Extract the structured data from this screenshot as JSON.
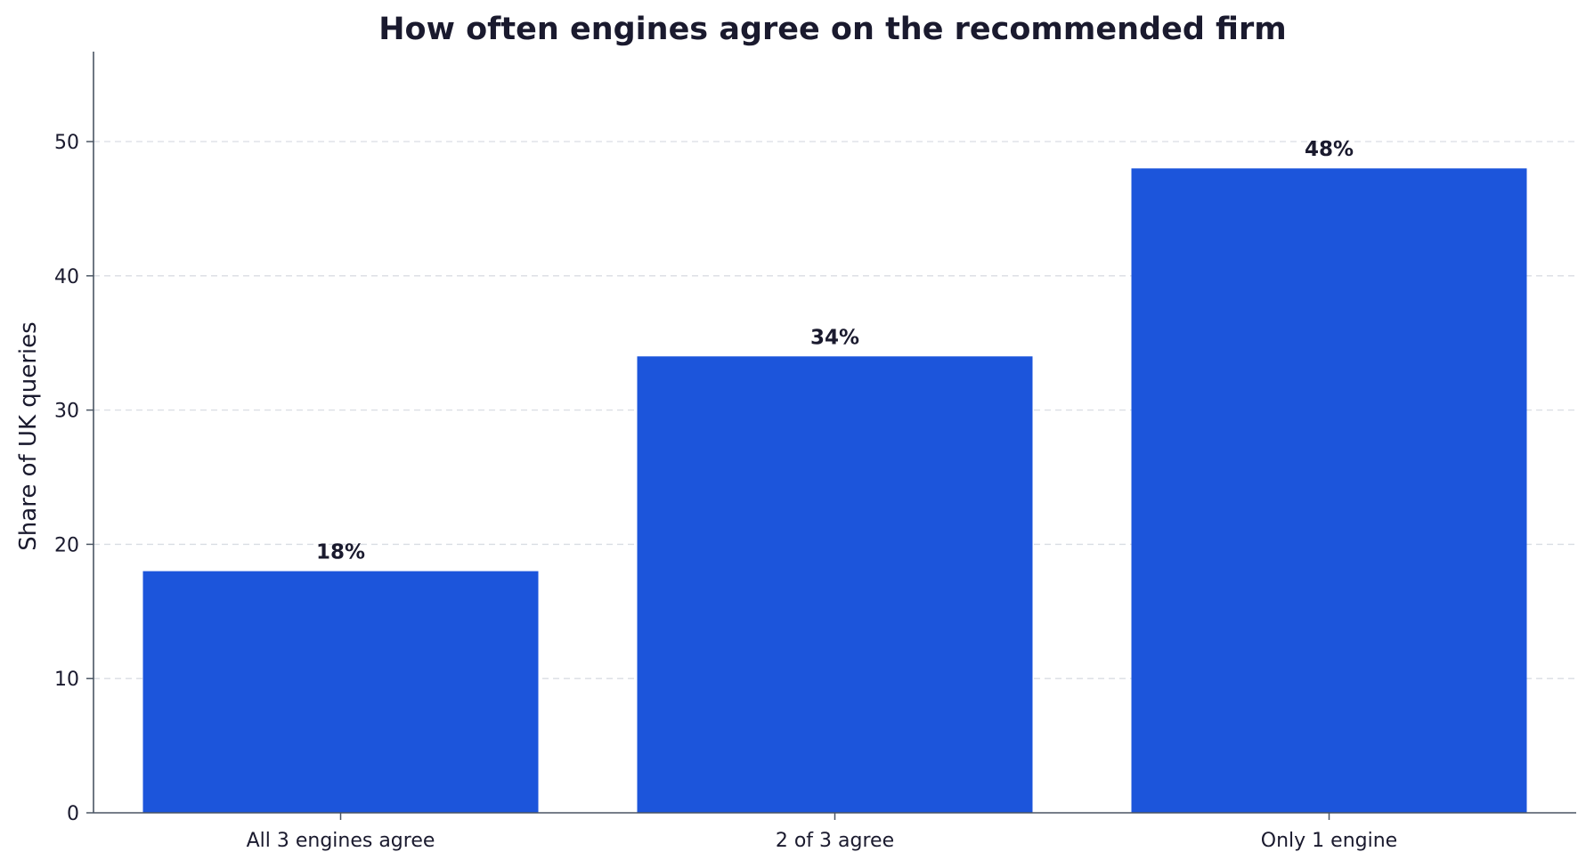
{
  "chart_data": {
    "type": "bar",
    "title": "How often engines agree on the recommended firm",
    "xlabel": "",
    "ylabel": "Share of UK queries",
    "categories": [
      "All 3 engines agree",
      "2 of 3 agree",
      "Only 1 engine"
    ],
    "values": [
      18,
      34,
      48
    ],
    "data_labels": [
      "18%",
      "34%",
      "48%"
    ],
    "ylim": [
      0,
      56.7
    ],
    "yticks": [
      0,
      10,
      20,
      30,
      40,
      50
    ],
    "grid": true,
    "legend": "none",
    "colors": {
      "bar": "#1c55db",
      "text": "#1a1a2e",
      "axis": "#4a5563",
      "grid": "#d9dde3"
    }
  }
}
